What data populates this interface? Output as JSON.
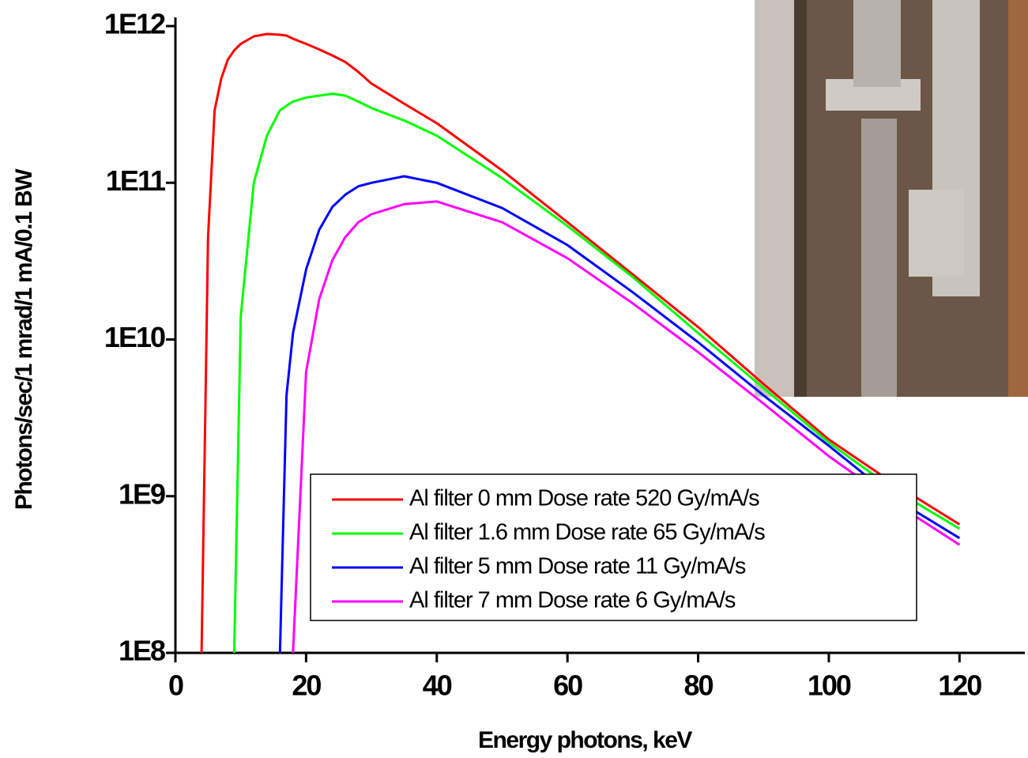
{
  "chart_data": {
    "type": "line",
    "xlabel": "Energy photons, keV",
    "ylabel": "Photons/sec/1 mrad/1 mA/0.1 BW",
    "x": [
      4,
      5,
      6,
      7,
      8,
      9,
      10,
      12,
      14,
      16,
      17,
      18,
      20,
      22,
      24,
      26,
      28,
      30,
      35,
      40,
      50,
      60,
      70,
      80,
      90,
      100,
      110,
      120
    ],
    "series": [
      {
        "name": "Al filter 0 mm Dose rate 520 Gy/mA/s",
        "color": "#ff0000",
        "values": [
          100000000.0,
          45000000000.0,
          290000000000.0,
          460000000000.0,
          610000000000.0,
          700000000000.0,
          770000000000.0,
          860000000000.0,
          890000000000.0,
          880000000000.0,
          870000000000.0,
          830000000000.0,
          770000000000.0,
          710000000000.0,
          650000000000.0,
          590000000000.0,
          510000000000.0,
          430000000000.0,
          320000000000.0,
          240000000000.0,
          120000000000.0,
          56000000000.0,
          26000000000.0,
          12000000000.0,
          5200000000.0,
          2300000000.0,
          1200000000.0,
          660000000.0
        ]
      },
      {
        "name": "Al filter 1.6 mm Dose rate 65 Gy/mA/s",
        "color": "#00ff00",
        "values": [
          null,
          null,
          null,
          null,
          null,
          100000000.0,
          14000000000.0,
          100000000000.0,
          200000000000.0,
          290000000000.0,
          310000000000.0,
          330000000000.0,
          350000000000.0,
          360000000000.0,
          370000000000.0,
          360000000000.0,
          330000000000.0,
          300000000000.0,
          250000000000.0,
          200000000000.0,
          107000000000.0,
          53000000000.0,
          25000000000.0,
          11000000000.0,
          4900000000.0,
          2200000000.0,
          1100000000.0,
          620000000.0
        ]
      },
      {
        "name": "Al filter 5 mm Dose rate 11 Gy/mA/s",
        "color": "#0000ff",
        "values": [
          null,
          null,
          null,
          null,
          null,
          null,
          null,
          null,
          null,
          100000000.0,
          4400000000.0,
          11000000000.0,
          28000000000.0,
          50000000000.0,
          70000000000.0,
          84000000000.0,
          95000000000.0,
          100000000000.0,
          110000000000.0,
          100000000000.0,
          69000000000.0,
          40000000000.0,
          20000000000.0,
          9600000000.0,
          4400000000.0,
          2100000000.0,
          970000000.0,
          540000000.0
        ]
      },
      {
        "name": "Al filter 7 mm Dose rate 6 Gy/mA/s",
        "color": "#ff00ff",
        "values": [
          null,
          null,
          null,
          null,
          null,
          null,
          null,
          null,
          null,
          null,
          null,
          100000000.0,
          6200000000.0,
          18000000000.0,
          32000000000.0,
          45000000000.0,
          56000000000.0,
          63000000000.0,
          73000000000.0,
          76000000000.0,
          56000000000.0,
          33000000000.0,
          17000000000.0,
          8300000000.0,
          3900000000.0,
          1800000000.0,
          910000000.0,
          490000000.0
        ]
      }
    ],
    "xlim": [
      0,
      130
    ],
    "xticks": [
      0,
      20,
      40,
      60,
      80,
      100,
      120
    ],
    "ylim": [
      100000000.0,
      1000000000000.0
    ],
    "yticks": [
      {
        "value": 100000000.0,
        "label": "1E8"
      },
      {
        "value": 1000000000.0,
        "label": "1E9"
      },
      {
        "value": 10000000000.0,
        "label": "1E10"
      },
      {
        "value": 100000000000.0,
        "label": "1E11"
      },
      {
        "value": 1000000000000.0,
        "label": "1E12"
      }
    ],
    "ylog": true,
    "grid": false,
    "legend": "lower center"
  }
}
